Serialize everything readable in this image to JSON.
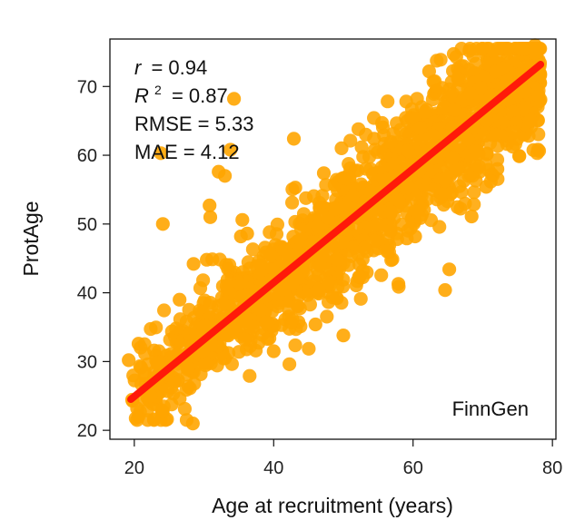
{
  "chart_data": {
    "type": "scatter",
    "xlabel": "Age at recruitment (years)",
    "ylabel": "ProtAge",
    "xlim": [
      16.5,
      80.5
    ],
    "ylim": [
      18.7,
      76.9
    ],
    "xticks": [
      20,
      40,
      60,
      80
    ],
    "yticks": [
      20,
      30,
      40,
      50,
      60,
      70
    ],
    "point_color": "#FFA500",
    "line_color": "#FF1A0A",
    "fit_line": {
      "x": [
        19.5,
        78.3
      ],
      "y": [
        24.5,
        73.2
      ]
    },
    "cohort_label": "FinnGen",
    "stats": {
      "r_label": "r",
      "r_value": "= 0.94",
      "r2_label": "R",
      "r2_sup": "2",
      "r2_value": "= 0.87",
      "rmse": "RMSE = 5.33",
      "mae": "MAE = 4.12"
    },
    "outliers": [
      [
        23.8,
        60.3
      ],
      [
        24.1,
        50.0
      ],
      [
        28.5,
        44.2
      ],
      [
        28.4,
        21.0
      ],
      [
        24.7,
        21.6
      ],
      [
        30.8,
        52.7
      ],
      [
        30.9,
        51.0
      ],
      [
        32.1,
        57.6
      ],
      [
        33.0,
        57.0
      ],
      [
        33.8,
        60.8
      ],
      [
        34.3,
        68.2
      ],
      [
        35.5,
        50.6
      ],
      [
        35.3,
        48.2
      ],
      [
        42.9,
        62.4
      ],
      [
        43.1,
        55.3
      ],
      [
        65.2,
        43.4
      ],
      [
        64.6,
        40.4
      ],
      [
        57.9,
        41.3
      ],
      [
        19.2,
        30.2
      ],
      [
        20.6,
        32.6
      ],
      [
        24.0,
        22.9
      ],
      [
        22.3,
        25.0
      ],
      [
        46.0,
        35.4
      ],
      [
        40.0,
        31.5
      ],
      [
        50.0,
        33.8
      ],
      [
        60.3,
        48.2
      ],
      [
        68.4,
        51.1
      ],
      [
        70.5,
        55.4
      ],
      [
        72.1,
        58.0
      ],
      [
        54.4,
        62.4
      ],
      [
        47.2,
        57.4
      ],
      [
        62.3,
        72.2
      ],
      [
        66.2,
        74.3
      ],
      [
        77.5,
        76.0
      ],
      [
        26.5,
        39.0
      ],
      [
        30.4,
        44.8
      ],
      [
        36.2,
        48.6
      ],
      [
        52.3,
        44.1
      ],
      [
        56.3,
        46.0
      ],
      [
        59.1,
        47.9
      ]
    ]
  }
}
